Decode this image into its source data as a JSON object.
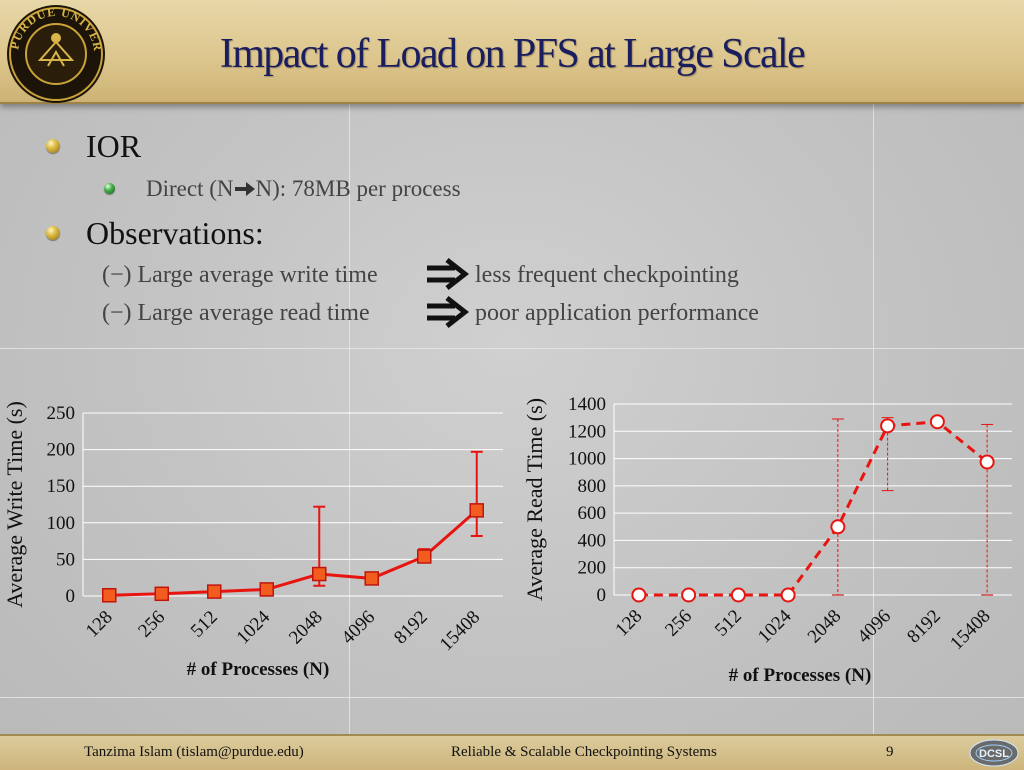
{
  "slide": {
    "title": "Impact of Load on PFS at Large Scale",
    "logo_text": "PURDUE UNIVERSITY",
    "bullets": {
      "ior": "IOR",
      "direct_prefix": "Direct (N",
      "direct_suffix": "N): 78MB per process",
      "observations": "Observations:",
      "obs1_left": "(−) Large average write time",
      "obs1_right": "less frequent checkpointing",
      "obs2_left": "(−) Large average read time",
      "obs2_right": "poor application performance"
    },
    "footer": {
      "author": "Tanzima Islam (tislam@purdue.edu)",
      "course": "Reliable & Scalable Checkpointing Systems",
      "page": "9",
      "logo_text": "DCSL"
    },
    "icons": {
      "bullet": "sphere-bullet-icon",
      "sub_bullet": "green-sphere-bullet-icon",
      "implies": "double-right-arrow-icon",
      "right_arrow": "right-arrow-icon"
    },
    "colors": {
      "title": "#1b1e5e",
      "header": "#dcc58c",
      "series": "#e8140f",
      "marker_fill_write": "#f25c1e"
    }
  },
  "chart_data": [
    {
      "type": "line",
      "categories": [
        "128",
        "256",
        "512",
        "1024",
        "2048",
        "4096",
        "8192",
        "15408"
      ],
      "series": [
        {
          "values": [
            1,
            3,
            6,
            9,
            30,
            24,
            54,
            117
          ],
          "error_low": [
            null,
            null,
            null,
            null,
            14,
            null,
            48,
            82
          ],
          "error_high": [
            null,
            null,
            null,
            null,
            122,
            null,
            64,
            197
          ]
        }
      ],
      "xlabel": "# of Processes (N)",
      "ylabel": "Average Write Time (s)",
      "ylim": [
        0,
        250
      ],
      "yticks": [
        0,
        50,
        100,
        150,
        200,
        250
      ],
      "grid": true,
      "marker": "square",
      "line_style": "solid"
    },
    {
      "type": "line",
      "categories": [
        "128",
        "256",
        "512",
        "1024",
        "2048",
        "4096",
        "8192",
        "15408"
      ],
      "series": [
        {
          "values": [
            0,
            0,
            0,
            0,
            500,
            1240,
            1270,
            975
          ],
          "error_low": [
            null,
            null,
            null,
            null,
            0,
            765,
            null,
            0
          ],
          "error_high": [
            null,
            null,
            null,
            null,
            1290,
            1300,
            null,
            1250
          ]
        }
      ],
      "xlabel": "# of Processes (N)",
      "ylabel": "Average Read Time (s)",
      "ylim": [
        0,
        1400
      ],
      "yticks": [
        0,
        200,
        400,
        600,
        800,
        1000,
        1200,
        1400
      ],
      "grid": true,
      "marker": "circle",
      "line_style": "dashed"
    }
  ]
}
